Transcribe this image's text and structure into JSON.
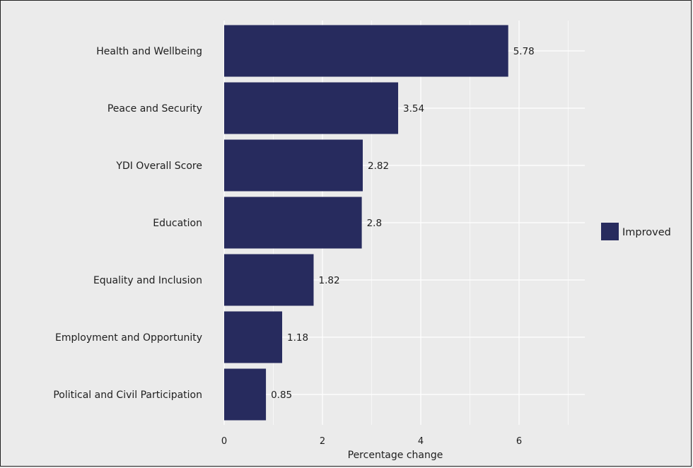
{
  "chart_data": {
    "type": "bar",
    "orientation": "horizontal",
    "categories": [
      "Health and Wellbeing",
      "Peace and Security",
      "YDI Overall Score",
      "Education",
      "Equality and Inclusion",
      "Employment and Opportunity",
      "Political and Civil Participation"
    ],
    "series": [
      {
        "name": "Improved",
        "values": [
          5.78,
          3.54,
          2.82,
          2.8,
          1.82,
          1.18,
          0.85
        ]
      }
    ],
    "value_labels": [
      "5.78",
      "3.54",
      "2.82",
      "2.8",
      "1.82",
      "1.18",
      "0.85"
    ],
    "xlabel": "Percentage change",
    "ylabel": "",
    "xlim": [
      0,
      7.4
    ],
    "xticks": [
      0,
      2,
      4,
      6
    ],
    "xtick_labels": [
      "0",
      "2",
      "4",
      "6"
    ],
    "grid": true,
    "legend": {
      "placement": "right",
      "entries": [
        "Improved"
      ]
    },
    "colors": {
      "bar": "#272b5e",
      "background": "#ebebeb",
      "grid": "#ffffff"
    }
  }
}
